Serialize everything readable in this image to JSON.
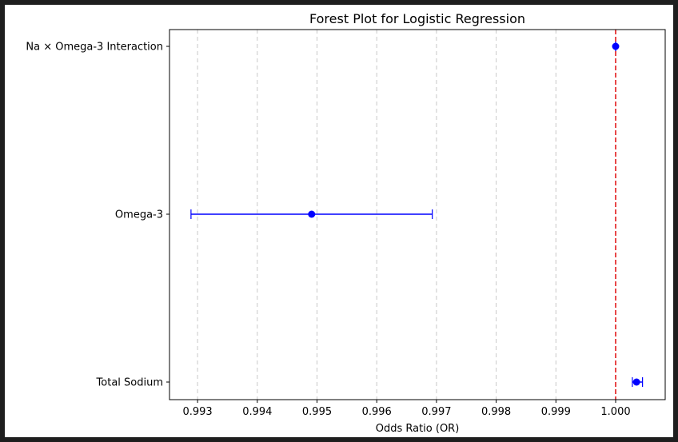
{
  "chart_data": {
    "type": "forest",
    "title": "Forest Plot for Logistic Regression",
    "xlabel": "Odds Ratio (OR)",
    "ylabel": "",
    "xlim": [
      0.99253,
      1.00083
    ],
    "xticks": [
      0.993,
      0.994,
      0.995,
      0.996,
      0.997,
      0.998,
      0.999,
      1.0
    ],
    "xtick_labels": [
      "0.993",
      "0.994",
      "0.995",
      "0.996",
      "0.997",
      "0.998",
      "0.999",
      "1.000"
    ],
    "grid": "x-dashed",
    "reference_line": {
      "x": 1.0,
      "color": "#e31a1c",
      "style": "dashed"
    },
    "marker_color": "#0000ff",
    "categories": [
      "Total Sodium",
      "Omega-3",
      "Na × Omega-3 Interaction"
    ],
    "estimates": [
      {
        "label": "Total Sodium",
        "or": 1.00035,
        "ci_low": 1.00028,
        "ci_high": 1.00045
      },
      {
        "label": "Omega-3",
        "or": 0.99491,
        "ci_low": 0.99289,
        "ci_high": 0.99693
      },
      {
        "label": "Na × Omega-3 Interaction",
        "or": 1.0,
        "ci_low": 1.0,
        "ci_high": 1.0
      }
    ]
  }
}
